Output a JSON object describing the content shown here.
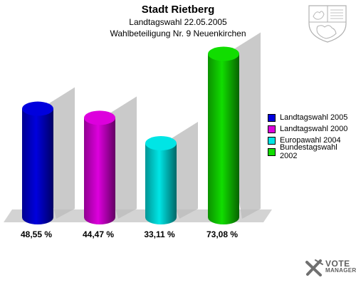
{
  "header": {
    "title": "Stadt Rietberg",
    "subtitle": "Landtagswahl 22.05.2005",
    "caption": "Wahlbeteiligung Nr. 9 Neuenkirchen"
  },
  "chart_data": {
    "type": "bar",
    "categories": [
      "Landtagswahl 2005",
      "Landtagswahl 2000",
      "Europawahl 2004",
      "Bundestagswahl 2002"
    ],
    "values": [
      48.55,
      44.47,
      33.11,
      73.08
    ],
    "value_labels": [
      "48,55 %",
      "44,47 %",
      "33,11 %",
      "73,08 %"
    ],
    "colors": [
      "#0000dd",
      "#dd00dd",
      "#00e5e5",
      "#11dd00"
    ],
    "ylim": [
      0,
      80
    ],
    "legend_position": "right",
    "grid": false,
    "style": "3d-cylinder"
  },
  "logo": {
    "line1": "VOTE",
    "line2": "MANAGER",
    "icon": "ballot-cross-icon"
  },
  "emblem": {
    "icon": "coat-of-arms-icon"
  }
}
